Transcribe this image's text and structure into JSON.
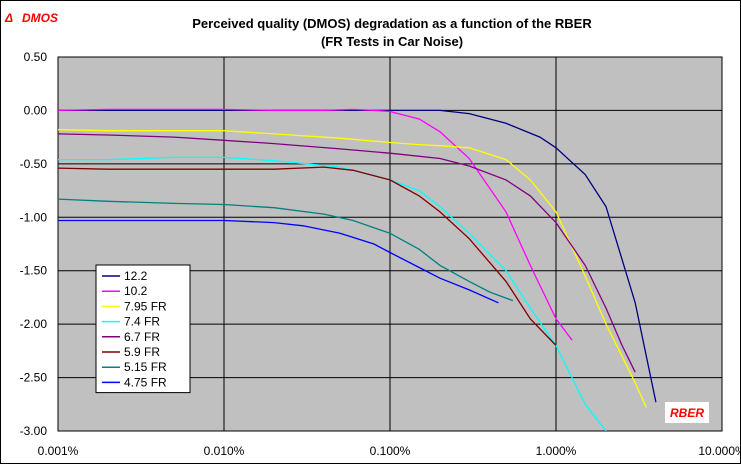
{
  "chart_data": {
    "type": "line",
    "title": "Perceived quality (DMOS) degradation as a function of the RBER",
    "subtitle": "(FR Tests in Car Noise)",
    "ylabel_symbol": "Δ",
    "ylabel": "DMOS",
    "xlabel": "RBER",
    "x_scale": "log",
    "xlim": [
      0.001,
      10
    ],
    "ylim": [
      -3.0,
      0.5
    ],
    "x_ticks": [
      "0.001%",
      "0.010%",
      "0.100%",
      "1.000%",
      "10.000%"
    ],
    "y_ticks": [
      "0.50",
      "0.00",
      "-0.50",
      "-1.00",
      "-1.50",
      "-2.00",
      "-2.50",
      "-3.00"
    ],
    "grid": true,
    "legend_position": "lower-left",
    "colors": {
      "plot_background": "#c0c0c0",
      "axis_label": "#ff0000"
    },
    "series": [
      {
        "name": "12.2",
        "color": "#000080",
        "x": [
          0.001,
          0.01,
          0.1,
          0.2,
          0.3,
          0.5,
          0.8,
          1.0,
          1.5,
          2.0,
          3.0,
          4.0
        ],
        "y": [
          0.0,
          0.0,
          0.0,
          0.0,
          -0.03,
          -0.12,
          -0.25,
          -0.35,
          -0.6,
          -0.9,
          -1.8,
          -2.73
        ]
      },
      {
        "name": "10.2",
        "color": "#ff00ff",
        "x": [
          0.001,
          0.002,
          0.005,
          0.01,
          0.02,
          0.04,
          0.06,
          0.08,
          0.1,
          0.15,
          0.2,
          0.3,
          0.5,
          0.7,
          1.0,
          1.25
        ],
        "y": [
          0.0,
          0.01,
          0.01,
          0.01,
          0.0,
          0.0,
          0.01,
          0.0,
          -0.01,
          -0.08,
          -0.2,
          -0.45,
          -0.95,
          -1.45,
          -1.95,
          -2.15
        ]
      },
      {
        "name": "7.95 FR",
        "color": "#ffff00",
        "x": [
          0.001,
          0.002,
          0.005,
          0.01,
          0.02,
          0.05,
          0.1,
          0.15,
          0.2,
          0.3,
          0.5,
          0.7,
          1.0,
          1.5,
          2.0,
          3.0,
          3.5
        ],
        "y": [
          -0.18,
          -0.19,
          -0.19,
          -0.19,
          -0.22,
          -0.26,
          -0.3,
          -0.32,
          -0.33,
          -0.35,
          -0.46,
          -0.65,
          -0.95,
          -1.55,
          -2.0,
          -2.55,
          -2.78
        ]
      },
      {
        "name": "7.4 FR",
        "color": "#00ffff",
        "x": [
          0.001,
          0.002,
          0.005,
          0.01,
          0.02,
          0.05,
          0.1,
          0.15,
          0.2,
          0.3,
          0.5,
          0.7,
          1.0,
          1.5,
          2.0
        ],
        "y": [
          -0.46,
          -0.46,
          -0.44,
          -0.44,
          -0.47,
          -0.53,
          -0.65,
          -0.75,
          -0.9,
          -1.15,
          -1.5,
          -1.85,
          -2.2,
          -2.75,
          -3.0
        ]
      },
      {
        "name": "6.7 FR",
        "color": "#800080",
        "x": [
          0.001,
          0.002,
          0.005,
          0.01,
          0.02,
          0.05,
          0.1,
          0.2,
          0.3,
          0.5,
          0.7,
          1.0,
          1.5,
          2.0,
          2.5,
          3.0
        ],
        "y": [
          -0.22,
          -0.23,
          -0.25,
          -0.28,
          -0.31,
          -0.36,
          -0.4,
          -0.45,
          -0.52,
          -0.65,
          -0.8,
          -1.05,
          -1.45,
          -1.85,
          -2.2,
          -2.45
        ]
      },
      {
        "name": "5.9 FR",
        "color": "#800000",
        "x": [
          0.001,
          0.002,
          0.005,
          0.01,
          0.02,
          0.04,
          0.06,
          0.1,
          0.15,
          0.2,
          0.3,
          0.5,
          0.7,
          1.0
        ],
        "y": [
          -0.54,
          -0.55,
          -0.55,
          -0.55,
          -0.55,
          -0.53,
          -0.56,
          -0.65,
          -0.8,
          -0.95,
          -1.2,
          -1.6,
          -1.95,
          -2.2
        ]
      },
      {
        "name": "5.15 FR",
        "color": "#008080",
        "x": [
          0.001,
          0.002,
          0.005,
          0.01,
          0.02,
          0.04,
          0.06,
          0.1,
          0.15,
          0.2,
          0.3,
          0.4,
          0.55
        ],
        "y": [
          -0.83,
          -0.85,
          -0.87,
          -0.88,
          -0.91,
          -0.97,
          -1.03,
          -1.15,
          -1.3,
          -1.45,
          -1.6,
          -1.7,
          -1.78
        ]
      },
      {
        "name": "4.75 FR",
        "color": "#0000ff",
        "x": [
          0.001,
          0.002,
          0.005,
          0.01,
          0.02,
          0.03,
          0.05,
          0.08,
          0.1,
          0.15,
          0.2,
          0.3,
          0.45
        ],
        "y": [
          -1.03,
          -1.03,
          -1.03,
          -1.03,
          -1.05,
          -1.08,
          -1.15,
          -1.25,
          -1.33,
          -1.47,
          -1.57,
          -1.68,
          -1.8
        ]
      }
    ]
  }
}
